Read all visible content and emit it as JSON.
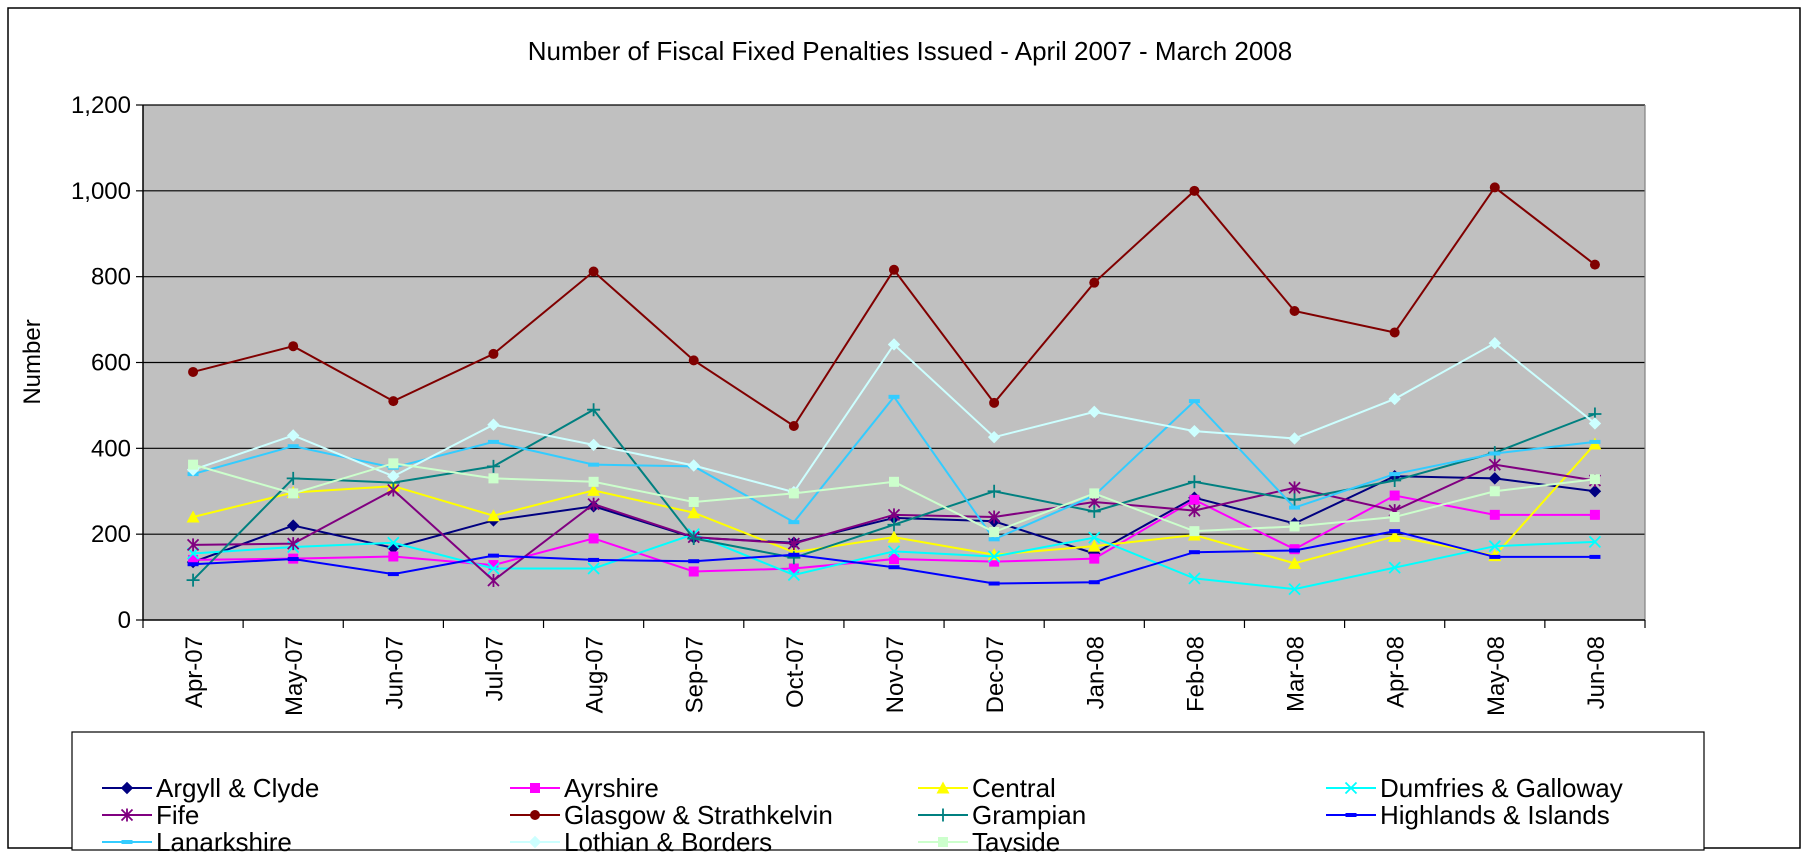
{
  "chart_data": {
    "type": "line",
    "title": "Number of Fiscal Fixed Penalties Issued - April 2007 - March 2008",
    "xlabel": "",
    "ylabel": "Number",
    "ylim": [
      0,
      1200
    ],
    "yticks": [
      "0",
      "200",
      "400",
      "600",
      "800",
      "1,000",
      "1,200"
    ],
    "grid": "horizontal",
    "plot_background": "#c0c0c0",
    "legend_position": "bottom",
    "categories": [
      "Apr-07",
      "May-07",
      "Jun-07",
      "Jul-07",
      "Aug-07",
      "Sep-07",
      "Oct-07",
      "Nov-07",
      "Dec-07",
      "Jan-08",
      "Feb-08",
      "Mar-08",
      "Apr-08",
      "May-08",
      "Jun-08"
    ],
    "series": [
      {
        "name": "Argyll & Clyde",
        "color": "#000080",
        "marker": "diamond",
        "values": [
          135,
          220,
          168,
          232,
          265,
          192,
          180,
          238,
          230,
          155,
          285,
          225,
          335,
          330,
          300
        ]
      },
      {
        "name": "Ayrshire",
        "color": "#ff00ff",
        "marker": "square",
        "values": [
          140,
          143,
          148,
          128,
          190,
          113,
          120,
          142,
          136,
          143,
          280,
          165,
          290,
          245,
          245
        ]
      },
      {
        "name": "Central",
        "color": "#ffff00",
        "marker": "triangle",
        "values": [
          240,
          297,
          312,
          243,
          302,
          250,
          158,
          193,
          152,
          172,
          198,
          132,
          195,
          150,
          410
        ]
      },
      {
        "name": "Dumfries & Galloway",
        "color": "#00ffff",
        "marker": "x",
        "values": [
          155,
          170,
          180,
          120,
          120,
          200,
          105,
          160,
          148,
          192,
          97,
          72,
          122,
          172,
          182
        ]
      },
      {
        "name": "Fife",
        "color": "#800080",
        "marker": "star",
        "values": [
          175,
          178,
          303,
          92,
          270,
          193,
          178,
          245,
          240,
          275,
          255,
          308,
          255,
          362,
          325
        ]
      },
      {
        "name": "Glasgow & Strathkelvin",
        "color": "#800000",
        "marker": "circle",
        "values": [
          578,
          638,
          510,
          620,
          812,
          605,
          452,
          816,
          506,
          786,
          1000,
          720,
          670,
          1008,
          828
        ]
      },
      {
        "name": "Grampian",
        "color": "#008080",
        "marker": "plus",
        "values": [
          93,
          330,
          320,
          358,
          490,
          190,
          145,
          222,
          300,
          253,
          322,
          280,
          325,
          390,
          480
        ]
      },
      {
        "name": "Highlands & Islands",
        "color": "#0000ff",
        "marker": "dash",
        "values": [
          130,
          142,
          107,
          150,
          140,
          137,
          152,
          123,
          85,
          88,
          158,
          162,
          207,
          147,
          147
        ]
      },
      {
        "name": "Lanarkshire",
        "color": "#33ccff",
        "marker": "dash",
        "values": [
          340,
          405,
          355,
          415,
          362,
          358,
          228,
          520,
          188,
          290,
          510,
          262,
          340,
          388,
          415
        ]
      },
      {
        "name": "Lothian & Borders",
        "color": "#ccffff",
        "marker": "diamond",
        "values": [
          350,
          430,
          335,
          455,
          408,
          360,
          298,
          642,
          426,
          485,
          440,
          423,
          515,
          645,
          458
        ]
      },
      {
        "name": "Tayside",
        "color": "#ccffcc",
        "marker": "square",
        "values": [
          362,
          295,
          365,
          330,
          322,
          275,
          295,
          322,
          205,
          295,
          207,
          218,
          240,
          300,
          328
        ]
      }
    ]
  }
}
